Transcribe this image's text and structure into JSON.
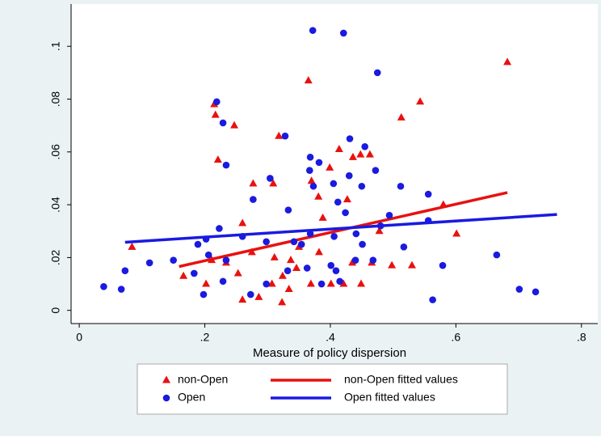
{
  "chart_data": {
    "type": "scatter",
    "x_label": "Measure of policy dispersion",
    "xlim": [
      -0.013,
      0.826
    ],
    "xticks": [
      0,
      {
        "value": 0.2,
        "label": ".2"
      },
      {
        "value": 0.4,
        "label": ".4"
      },
      {
        "value": 0.6,
        "label": ".6"
      },
      {
        "value": 0.8,
        "label": ".8"
      }
    ],
    "ylim": [
      -0.005,
      0.116
    ],
    "yticks": [
      0,
      {
        "value": 0.02,
        "label": ".02"
      },
      {
        "value": 0.04,
        "label": ".04"
      },
      {
        "value": 0.06,
        "label": ".06"
      },
      {
        "value": 0.08,
        "label": ".08"
      },
      {
        "value": 0.1,
        "label": ".1"
      }
    ],
    "series": [
      {
        "name": "non-Open",
        "type": "scatter",
        "marker": "triangle",
        "color": "#e8110f",
        "x": [
          0.084,
          0.166,
          0.215,
          0.217,
          0.247,
          0.221,
          0.26,
          0.318,
          0.309,
          0.365,
          0.37,
          0.381,
          0.388,
          0.399,
          0.414,
          0.427,
          0.436,
          0.448,
          0.463,
          0.478,
          0.513,
          0.543,
          0.58,
          0.601,
          0.682,
          0.26,
          0.286,
          0.307,
          0.324,
          0.337,
          0.35,
          0.202,
          0.234,
          0.253,
          0.275,
          0.311,
          0.334,
          0.369,
          0.382,
          0.401,
          0.421,
          0.435,
          0.449,
          0.466,
          0.498,
          0.53,
          0.277,
          0.323,
          0.211,
          0.346
        ],
        "values": [
          0.024,
          0.013,
          0.078,
          0.074,
          0.07,
          0.057,
          0.033,
          0.066,
          0.048,
          0.087,
          0.049,
          0.043,
          0.035,
          0.054,
          0.061,
          0.042,
          0.058,
          0.059,
          0.059,
          0.03,
          0.073,
          0.079,
          0.04,
          0.029,
          0.094,
          0.004,
          0.005,
          0.01,
          0.013,
          0.019,
          0.024,
          0.01,
          0.018,
          0.014,
          0.022,
          0.02,
          0.008,
          0.01,
          0.022,
          0.01,
          0.01,
          0.018,
          0.01,
          0.018,
          0.017,
          0.017,
          0.048,
          0.003,
          0.019,
          0.016
        ]
      },
      {
        "name": "non-Open fitted values",
        "type": "line",
        "color": "#e8110f",
        "x": [
          0.159,
          0.682
        ],
        "values": [
          0.0166,
          0.0446
        ]
      },
      {
        "name": "Open",
        "type": "scatter",
        "marker": "circle",
        "color": "#1a1ae0",
        "x": [
          0.372,
          0.421,
          0.475,
          0.219,
          0.229,
          0.328,
          0.368,
          0.382,
          0.234,
          0.304,
          0.277,
          0.333,
          0.367,
          0.373,
          0.405,
          0.43,
          0.45,
          0.455,
          0.472,
          0.431,
          0.412,
          0.424,
          0.512,
          0.556,
          0.556,
          0.494,
          0.48,
          0.517,
          0.468,
          0.579,
          0.563,
          0.665,
          0.701,
          0.727,
          0.039,
          0.073,
          0.067,
          0.112,
          0.15,
          0.183,
          0.189,
          0.202,
          0.223,
          0.206,
          0.229,
          0.198,
          0.234,
          0.273,
          0.298,
          0.332,
          0.363,
          0.386,
          0.401,
          0.409,
          0.415,
          0.44,
          0.451,
          0.298,
          0.354,
          0.368,
          0.26,
          0.342,
          0.406,
          0.441
        ],
        "values": [
          0.106,
          0.105,
          0.09,
          0.079,
          0.071,
          0.066,
          0.058,
          0.056,
          0.055,
          0.05,
          0.042,
          0.038,
          0.053,
          0.047,
          0.048,
          0.051,
          0.047,
          0.062,
          0.053,
          0.065,
          0.041,
          0.037,
          0.047,
          0.044,
          0.034,
          0.036,
          0.032,
          0.024,
          0.019,
          0.017,
          0.004,
          0.021,
          0.008,
          0.007,
          0.009,
          0.015,
          0.008,
          0.018,
          0.019,
          0.014,
          0.025,
          0.027,
          0.031,
          0.021,
          0.011,
          0.006,
          0.019,
          0.006,
          0.01,
          0.015,
          0.016,
          0.01,
          0.017,
          0.015,
          0.011,
          0.019,
          0.025,
          0.026,
          0.025,
          0.029,
          0.028,
          0.026,
          0.028,
          0.029
        ]
      },
      {
        "name": "Open fitted values",
        "type": "line",
        "color": "#1a1ae0",
        "x": [
          0.073,
          0.761
        ],
        "values": [
          0.0258,
          0.0363
        ]
      }
    ]
  }
}
